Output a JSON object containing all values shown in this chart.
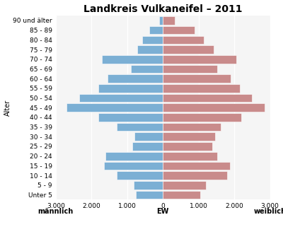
{
  "title": "Landkreis Vulkaneifel – 2011",
  "age_groups_bottom_to_top": [
    "Unter 5",
    "5 - 9",
    "10 - 14",
    "15 - 19",
    "20 - 24",
    "25 - 29",
    "30 - 34",
    "35 - 39",
    "40 - 44",
    "45 - 49",
    "50 - 54",
    "55 - 59",
    "60 - 64",
    "65 - 69",
    "70 - 74",
    "75 - 79",
    "80 - 84",
    "85 - 89",
    "90 und älter"
  ],
  "male_bottom_to_top": [
    760,
    820,
    1300,
    1650,
    1600,
    850,
    800,
    1300,
    1800,
    2700,
    2350,
    1800,
    1550,
    900,
    1700,
    720,
    580,
    380,
    100
  ],
  "female_bottom_to_top": [
    1050,
    1200,
    1800,
    1870,
    1520,
    1380,
    1460,
    1620,
    2200,
    2850,
    2500,
    2150,
    1900,
    1530,
    2050,
    1430,
    1150,
    880,
    330
  ],
  "male_color": "#7bafd4",
  "female_color": "#c98b8b",
  "xlabel_left": "männlich",
  "xlabel_center": "EW",
  "xlabel_right": "weiblich",
  "ylabel": "Alter",
  "xlim": 3000,
  "xtick_vals": [
    -3000,
    -2000,
    -1000,
    0,
    1000,
    2000,
    3000
  ],
  "xtick_labels": [
    "3.000",
    "2.000",
    "1.000",
    "0",
    "1.000",
    "2.000",
    "3.000"
  ],
  "background_color": "#ffffff",
  "plot_bg_color": "#f5f5f5",
  "grid_color": "#ffffff",
  "title_fontsize": 10,
  "label_fontsize": 7,
  "tick_fontsize": 6.5
}
